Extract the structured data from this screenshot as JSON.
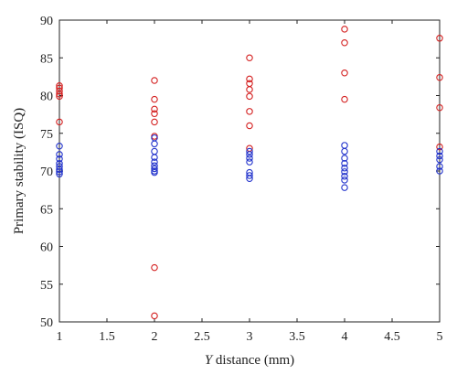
{
  "chart_data": {
    "type": "scatter",
    "title": "",
    "xlabel_italic": "Y",
    "xlabel_rest": " distance (mm)",
    "ylabel": "Primary stability (ISQ)",
    "xlim": [
      1,
      5
    ],
    "ylim": [
      50,
      90
    ],
    "xticks": [
      1,
      1.5,
      2,
      2.5,
      3,
      3.5,
      4,
      4.5,
      5
    ],
    "xtick_labels": [
      "1",
      "1.5",
      "2",
      "2.5",
      "3",
      "3.5",
      "4",
      "4.5",
      "5"
    ],
    "yticks": [
      50,
      55,
      60,
      65,
      70,
      75,
      80,
      85,
      90
    ],
    "ytick_labels": [
      "50",
      "55",
      "60",
      "65",
      "70",
      "75",
      "80",
      "85",
      "90"
    ],
    "grid": false,
    "marker": "circle-open",
    "series": [
      {
        "color": "#d42020",
        "x": [
          1,
          1,
          1,
          1,
          1,
          1,
          2,
          2,
          2,
          2,
          2,
          2,
          2,
          2,
          3,
          3,
          3,
          3,
          3,
          3,
          3,
          3,
          4,
          4,
          4,
          4,
          5,
          5,
          5,
          5
        ],
        "y": [
          81.3,
          81.0,
          80.6,
          80.2,
          79.9,
          76.5,
          82.0,
          79.5,
          78.2,
          77.6,
          76.5,
          74.6,
          57.2,
          50.8,
          85.0,
          82.2,
          81.6,
          80.8,
          79.9,
          77.9,
          76.0,
          73.0,
          88.8,
          87.0,
          83.0,
          79.5,
          87.6,
          82.4,
          78.4,
          73.2
        ]
      },
      {
        "color": "#2233cc",
        "x": [
          1,
          1,
          1,
          1,
          1,
          1,
          1,
          1,
          2,
          2,
          2,
          2,
          2,
          2,
          2,
          2,
          2,
          3,
          3,
          3,
          3,
          3,
          3,
          3,
          4,
          4,
          4,
          4,
          4,
          4,
          4,
          4,
          4,
          5,
          5,
          5,
          5,
          5
        ],
        "y": [
          73.3,
          72.2,
          71.6,
          71.0,
          70.6,
          70.2,
          69.9,
          69.6,
          74.4,
          73.6,
          72.6,
          71.8,
          71.2,
          70.7,
          70.3,
          70.0,
          69.8,
          72.6,
          72.2,
          71.7,
          71.2,
          69.8,
          69.4,
          69.0,
          73.4,
          72.6,
          71.7,
          71.0,
          70.4,
          69.9,
          69.3,
          68.8,
          67.8,
          72.6,
          72.0,
          71.5,
          70.6,
          70.0
        ]
      }
    ]
  }
}
